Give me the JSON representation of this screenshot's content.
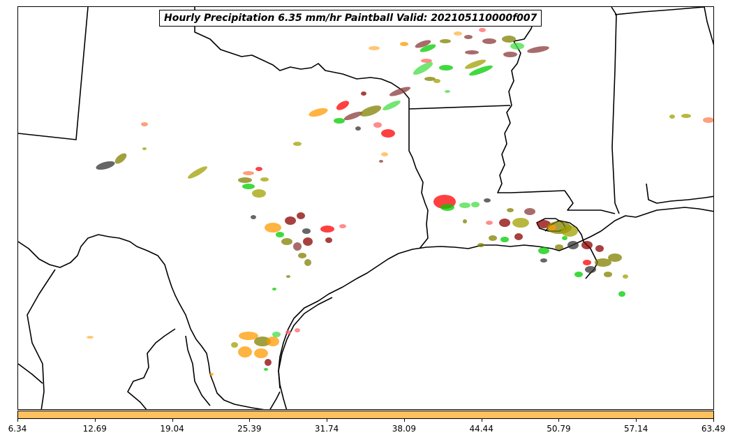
{
  "title": "Hourly Precipitation 6.35 mm/hr Paintball Valid: 202105110000f007",
  "colorbar": {
    "color": "#ffc05e",
    "ticks": [
      "6.34",
      "12.69",
      "19.04",
      "25.39",
      "31.74",
      "38.09",
      "44.44",
      "50.79",
      "57.14",
      "63.49"
    ]
  },
  "member_colors": [
    "#ff0000",
    "#ff6666",
    "#00cc00",
    "#44dd44",
    "#ff9900",
    "#ffb347",
    "#8b0000",
    "#8b3a3a",
    "#808000",
    "#a0a000",
    "#333333",
    "#ff7f50"
  ]
}
